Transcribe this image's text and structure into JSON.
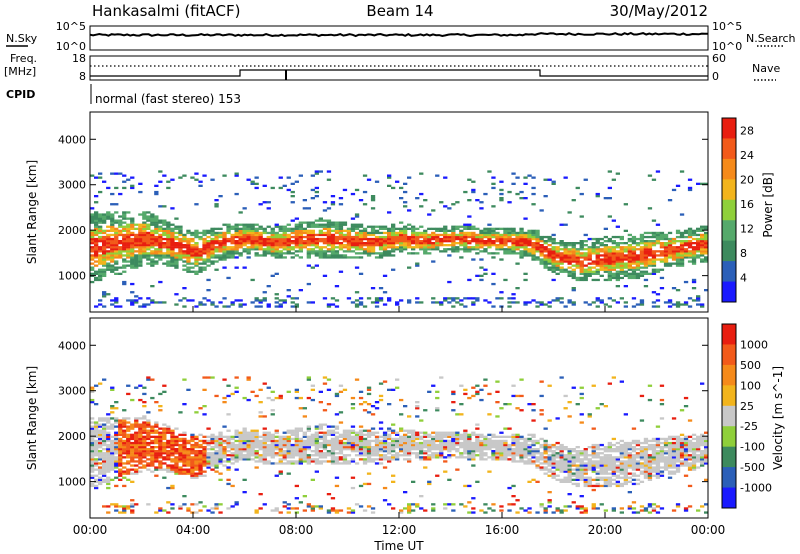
{
  "header": {
    "station": "Hankasalmi (fitACF)",
    "beam": "Beam 14",
    "date": "30/May/2012"
  },
  "strip": {
    "nsky_label": "N.Sky",
    "nsky_top": "10^5",
    "nsky_bottom": "10^0",
    "nsearch_label": "N.Search",
    "nsearch_top": "10^5",
    "nsearch_bottom": "10^0",
    "freq_label_1": "Freq.",
    "freq_label_2": "[MHz]",
    "freq_top": "18",
    "freq_bottom": "8",
    "nave_label": "Nave",
    "nave_top": "60",
    "nave_bottom": "0",
    "cpid_label": "CPID",
    "cpid_value": "normal (fast stereo) 153"
  },
  "colors": {
    "scale": [
      "#1a1aff",
      "#2b5fb8",
      "#3d8a5e",
      "#55a96b",
      "#8fcf3a",
      "#f2b41c",
      "#f58a1a",
      "#f25a1a",
      "#e81e10"
    ],
    "velocity_scale": [
      "#e81e10",
      "#f25a1a",
      "#f58a1a",
      "#f2b41c",
      "#c8c8c8",
      "#8fcf3a",
      "#3d8a5e",
      "#2b5fb8",
      "#1a1aff"
    ],
    "ground_scatter": "#c8c8c8"
  },
  "chart_data": [
    {
      "type": "heatmap",
      "panel": "power",
      "ylabel": "Slant Range [km]",
      "yticks": [
        "1000",
        "2000",
        "3000",
        "4000"
      ],
      "ylim": [
        200,
        4600
      ],
      "xlim_hours": [
        0,
        24
      ],
      "colorbar_label": "Power [dB]",
      "colorbar_ticks": [
        "4",
        "8",
        "12",
        "16",
        "20",
        "24",
        "28"
      ],
      "colorbar_range": [
        0,
        30
      ],
      "echo_bands": [
        {
          "t": [
            0,
            1,
            2,
            3,
            4,
            5,
            6,
            7,
            8,
            9,
            10,
            11,
            12,
            13,
            14,
            15,
            16,
            17,
            18,
            19,
            20,
            21,
            22,
            23,
            24
          ],
          "center_km": [
            1600,
            1700,
            1800,
            1700,
            1500,
            1700,
            1800,
            1700,
            1750,
            1800,
            1750,
            1700,
            1800,
            1750,
            1800,
            1750,
            1750,
            1700,
            1400,
            1300,
            1350,
            1400,
            1500,
            1600,
            1700
          ],
          "halfwidth_km": [
            800,
            700,
            600,
            500,
            500,
            400,
            350,
            350,
            400,
            450,
            400,
            350,
            350,
            300,
            300,
            300,
            300,
            350,
            400,
            450,
            500,
            500,
            450,
            400,
            400
          ]
        }
      ]
    },
    {
      "type": "heatmap",
      "panel": "velocity",
      "ylabel": "Slant Range [km]",
      "xlabel": "Time UT",
      "xticks": [
        "00:00",
        "04:00",
        "08:00",
        "12:00",
        "16:00",
        "20:00",
        "00:00"
      ],
      "yticks": [
        "1000",
        "2000",
        "3000",
        "4000"
      ],
      "ylim": [
        200,
        4600
      ],
      "xlim_hours": [
        0,
        24
      ],
      "colorbar_label": "Velocity [m s^-1]",
      "colorbar_ticks": [
        "1000",
        "500",
        "100",
        "25",
        "-25",
        "-100",
        "-500",
        "-1000"
      ],
      "echo_bands": [
        {
          "t": [
            0,
            1,
            2,
            3,
            4,
            5,
            6,
            7,
            8,
            9,
            10,
            11,
            12,
            13,
            14,
            15,
            16,
            17,
            18,
            19,
            20,
            21,
            22,
            23,
            24
          ],
          "center_km": [
            1600,
            1700,
            1800,
            1700,
            1500,
            1700,
            1800,
            1700,
            1750,
            1800,
            1750,
            1700,
            1800,
            1750,
            1800,
            1750,
            1750,
            1700,
            1400,
            1300,
            1350,
            1400,
            1500,
            1600,
            1700
          ],
          "halfwidth_km": [
            800,
            700,
            600,
            500,
            500,
            400,
            350,
            350,
            400,
            450,
            400,
            350,
            350,
            300,
            300,
            300,
            300,
            350,
            400,
            450,
            500,
            500,
            450,
            400,
            400
          ]
        }
      ]
    }
  ]
}
